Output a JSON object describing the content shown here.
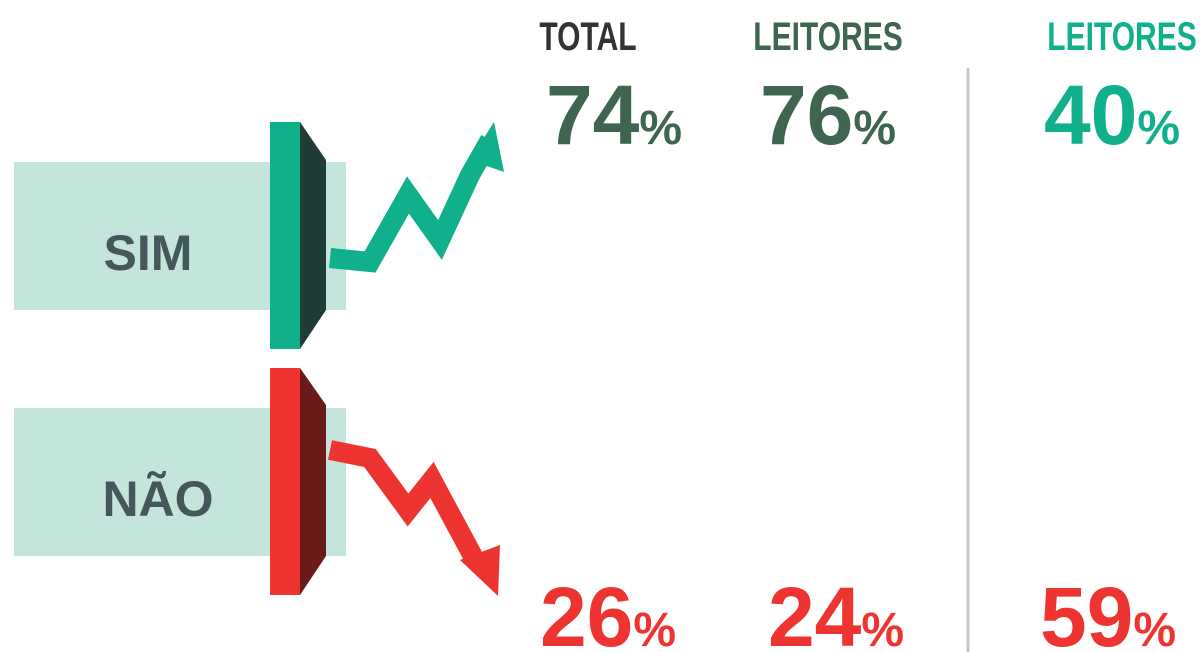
{
  "rows": {
    "yes": "SIM",
    "no": "NÃO"
  },
  "unit": "%",
  "columns": [
    {
      "header": "TOTAL",
      "yes": 74,
      "no": 26
    },
    {
      "header": "LEITORES",
      "yes": 76,
      "no": 24
    },
    {
      "header": "LEITORES",
      "yes": 40,
      "no": 59
    }
  ]
}
